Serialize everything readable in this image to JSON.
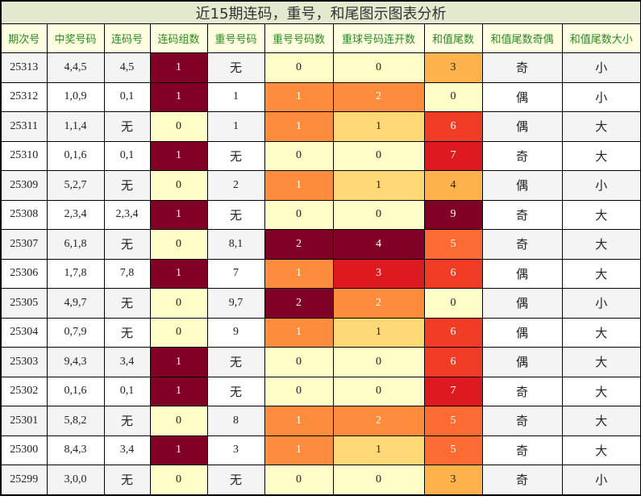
{
  "title": "近15期连码，重号，和尾图示图表分析",
  "colors": {
    "title_bg": "#e2ebcf",
    "header_bg": "#fffee0",
    "header_text": "#2a8a1f",
    "heat": {
      "pale": "#fffdc8",
      "light": "#fed976",
      "amber": "#feb24c",
      "orange": "#fd8d3c",
      "orange_red": "#fc6c32",
      "red_orange": "#f23d26",
      "red": "#dc1a1f",
      "crimson": "#800026"
    }
  },
  "headers": [
    "期次号",
    "中奖号码",
    "连码号",
    "连码组数",
    "重号号码",
    "重号号码数",
    "重球号码连开数",
    "和值尾数",
    "和值尾数奇偶",
    "和值尾数大小"
  ],
  "rows": [
    {
      "issue": "25313",
      "numbers": "4,4,5",
      "consec": "4,5",
      "consec_groups": "1",
      "repeat": "无",
      "repeat_count": "0",
      "repeat_streak": "0",
      "sum_tail": "3",
      "odd_even": "奇",
      "big_small": "小"
    },
    {
      "issue": "25312",
      "numbers": "1,0,9",
      "consec": "0,1",
      "consec_groups": "1",
      "repeat": "1",
      "repeat_count": "1",
      "repeat_streak": "2",
      "sum_tail": "0",
      "odd_even": "偶",
      "big_small": "小"
    },
    {
      "issue": "25311",
      "numbers": "1,1,4",
      "consec": "无",
      "consec_groups": "0",
      "repeat": "1",
      "repeat_count": "1",
      "repeat_streak": "1",
      "sum_tail": "6",
      "odd_even": "偶",
      "big_small": "大"
    },
    {
      "issue": "25310",
      "numbers": "0,1,6",
      "consec": "0,1",
      "consec_groups": "1",
      "repeat": "无",
      "repeat_count": "0",
      "repeat_streak": "0",
      "sum_tail": "7",
      "odd_even": "奇",
      "big_small": "大"
    },
    {
      "issue": "25309",
      "numbers": "5,2,7",
      "consec": "无",
      "consec_groups": "0",
      "repeat": "2",
      "repeat_count": "1",
      "repeat_streak": "1",
      "sum_tail": "4",
      "odd_even": "偶",
      "big_small": "小"
    },
    {
      "issue": "25308",
      "numbers": "2,3,4",
      "consec": "2,3,4",
      "consec_groups": "1",
      "repeat": "无",
      "repeat_count": "0",
      "repeat_streak": "0",
      "sum_tail": "9",
      "odd_even": "奇",
      "big_small": "大"
    },
    {
      "issue": "25307",
      "numbers": "6,1,8",
      "consec": "无",
      "consec_groups": "0",
      "repeat": "8,1",
      "repeat_count": "2",
      "repeat_streak": "4",
      "sum_tail": "5",
      "odd_even": "奇",
      "big_small": "大"
    },
    {
      "issue": "25306",
      "numbers": "1,7,8",
      "consec": "7,8",
      "consec_groups": "1",
      "repeat": "7",
      "repeat_count": "1",
      "repeat_streak": "3",
      "sum_tail": "6",
      "odd_even": "偶",
      "big_small": "大"
    },
    {
      "issue": "25305",
      "numbers": "4,9,7",
      "consec": "无",
      "consec_groups": "0",
      "repeat": "9,7",
      "repeat_count": "2",
      "repeat_streak": "2",
      "sum_tail": "0",
      "odd_even": "偶",
      "big_small": "小"
    },
    {
      "issue": "25304",
      "numbers": "0,7,9",
      "consec": "无",
      "consec_groups": "0",
      "repeat": "9",
      "repeat_count": "1",
      "repeat_streak": "1",
      "sum_tail": "6",
      "odd_even": "偶",
      "big_small": "大"
    },
    {
      "issue": "25303",
      "numbers": "9,4,3",
      "consec": "3,4",
      "consec_groups": "1",
      "repeat": "无",
      "repeat_count": "0",
      "repeat_streak": "0",
      "sum_tail": "6",
      "odd_even": "偶",
      "big_small": "大"
    },
    {
      "issue": "25302",
      "numbers": "0,1,6",
      "consec": "0,1",
      "consec_groups": "1",
      "repeat": "无",
      "repeat_count": "0",
      "repeat_streak": "0",
      "sum_tail": "7",
      "odd_even": "奇",
      "big_small": "大"
    },
    {
      "issue": "25301",
      "numbers": "5,8,2",
      "consec": "无",
      "consec_groups": "0",
      "repeat": "8",
      "repeat_count": "1",
      "repeat_streak": "2",
      "sum_tail": "5",
      "odd_even": "奇",
      "big_small": "大"
    },
    {
      "issue": "25300",
      "numbers": "8,4,3",
      "consec": "3,4",
      "consec_groups": "1",
      "repeat": "3",
      "repeat_count": "1",
      "repeat_streak": "1",
      "sum_tail": "5",
      "odd_even": "奇",
      "big_small": "大"
    },
    {
      "issue": "25299",
      "numbers": "3,0,0",
      "consec": "无",
      "consec_groups": "0",
      "repeat": "无",
      "repeat_count": "0",
      "repeat_streak": "0",
      "sum_tail": "3",
      "odd_even": "奇",
      "big_small": "小"
    }
  ],
  "chart_data": {
    "type": "table",
    "title": "近15期连码，重号，和尾图示图表分析",
    "columns": [
      "期次号",
      "中奖号码",
      "连码号",
      "连码组数",
      "重号号码",
      "重号号码数",
      "重球号码连开数",
      "和值尾数",
      "和值尾数奇偶",
      "和值尾数大小"
    ],
    "heatmap_columns": [
      "连码组数",
      "重号号码数",
      "重球号码连开数",
      "和值尾数"
    ],
    "x": [
      "25313",
      "25312",
      "25311",
      "25310",
      "25309",
      "25308",
      "25307",
      "25306",
      "25305",
      "25304",
      "25303",
      "25302",
      "25301",
      "25300",
      "25299"
    ],
    "series": [
      {
        "name": "连码组数",
        "values": [
          1,
          1,
          0,
          1,
          0,
          1,
          0,
          1,
          0,
          0,
          1,
          1,
          0,
          1,
          0
        ]
      },
      {
        "name": "重号号码数",
        "values": [
          0,
          1,
          1,
          0,
          1,
          0,
          2,
          1,
          2,
          1,
          0,
          0,
          1,
          1,
          0
        ]
      },
      {
        "name": "重球号码连开数",
        "values": [
          0,
          2,
          1,
          0,
          1,
          0,
          4,
          3,
          2,
          1,
          0,
          0,
          2,
          1,
          0
        ]
      },
      {
        "name": "和值尾数",
        "values": [
          3,
          0,
          6,
          7,
          4,
          9,
          5,
          6,
          0,
          6,
          6,
          7,
          5,
          5,
          3
        ]
      }
    ]
  }
}
